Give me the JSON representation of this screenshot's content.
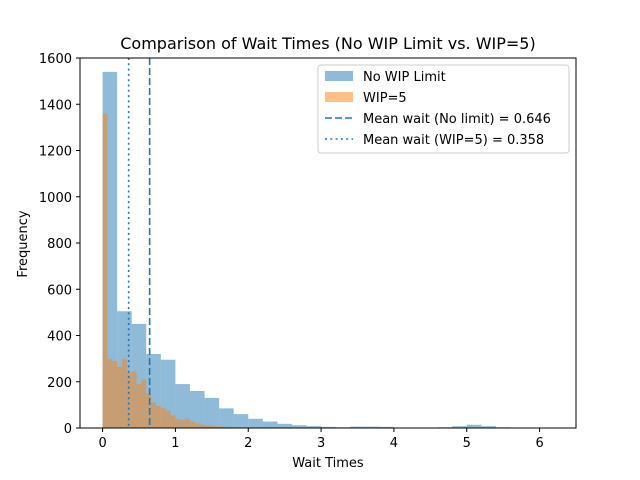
{
  "chart_data": {
    "type": "histogram",
    "title": "Comparison of Wait Times (No WIP Limit vs. WIP=5)",
    "xlabel": "Wait Times",
    "ylabel": "Frequency",
    "xlim": [
      -0.31,
      6.5
    ],
    "ylim": [
      0,
      1600
    ],
    "xticks": [
      0,
      1,
      2,
      3,
      4,
      5,
      6
    ],
    "yticks": [
      0,
      200,
      400,
      600,
      800,
      1000,
      1200,
      1400,
      1600
    ],
    "series": [
      {
        "name": "No WIP Limit",
        "color": "#1f77b4",
        "alpha": 0.5,
        "bin_start": 0,
        "bin_width": 0.2,
        "values": [
          1540,
          505,
          450,
          320,
          295,
          190,
          160,
          130,
          85,
          60,
          40,
          28,
          18,
          12,
          8,
          5,
          3,
          6,
          6,
          5,
          2,
          2,
          0,
          3,
          8,
          14,
          8,
          3,
          0,
          0,
          0,
          0
        ]
      },
      {
        "name": "WIP=5",
        "color": "#ff7f0e",
        "alpha": 0.5,
        "bin_start": 0,
        "bin_width": 0.0667,
        "values": [
          1360,
          300,
          290,
          265,
          300,
          240,
          245,
          190,
          210,
          150,
          110,
          95,
          85,
          75,
          55,
          40,
          35,
          40,
          28,
          20,
          15,
          12,
          10,
          8,
          6,
          5,
          4,
          3,
          2
        ]
      }
    ],
    "reference_lines": [
      {
        "name": "Mean wait (No limit) = 0.646",
        "x": 0.646,
        "style": "dashed",
        "color": "#1f77b4"
      },
      {
        "name": "Mean wait (WIP=5) = 0.358",
        "x": 0.358,
        "style": "dotted",
        "color": "#1f77b4"
      }
    ],
    "legend": {
      "position": "top-right",
      "entries": [
        "No WIP Limit",
        "WIP=5",
        "Mean wait (No limit) = 0.646",
        "Mean wait (WIP=5) = 0.358"
      ]
    }
  }
}
